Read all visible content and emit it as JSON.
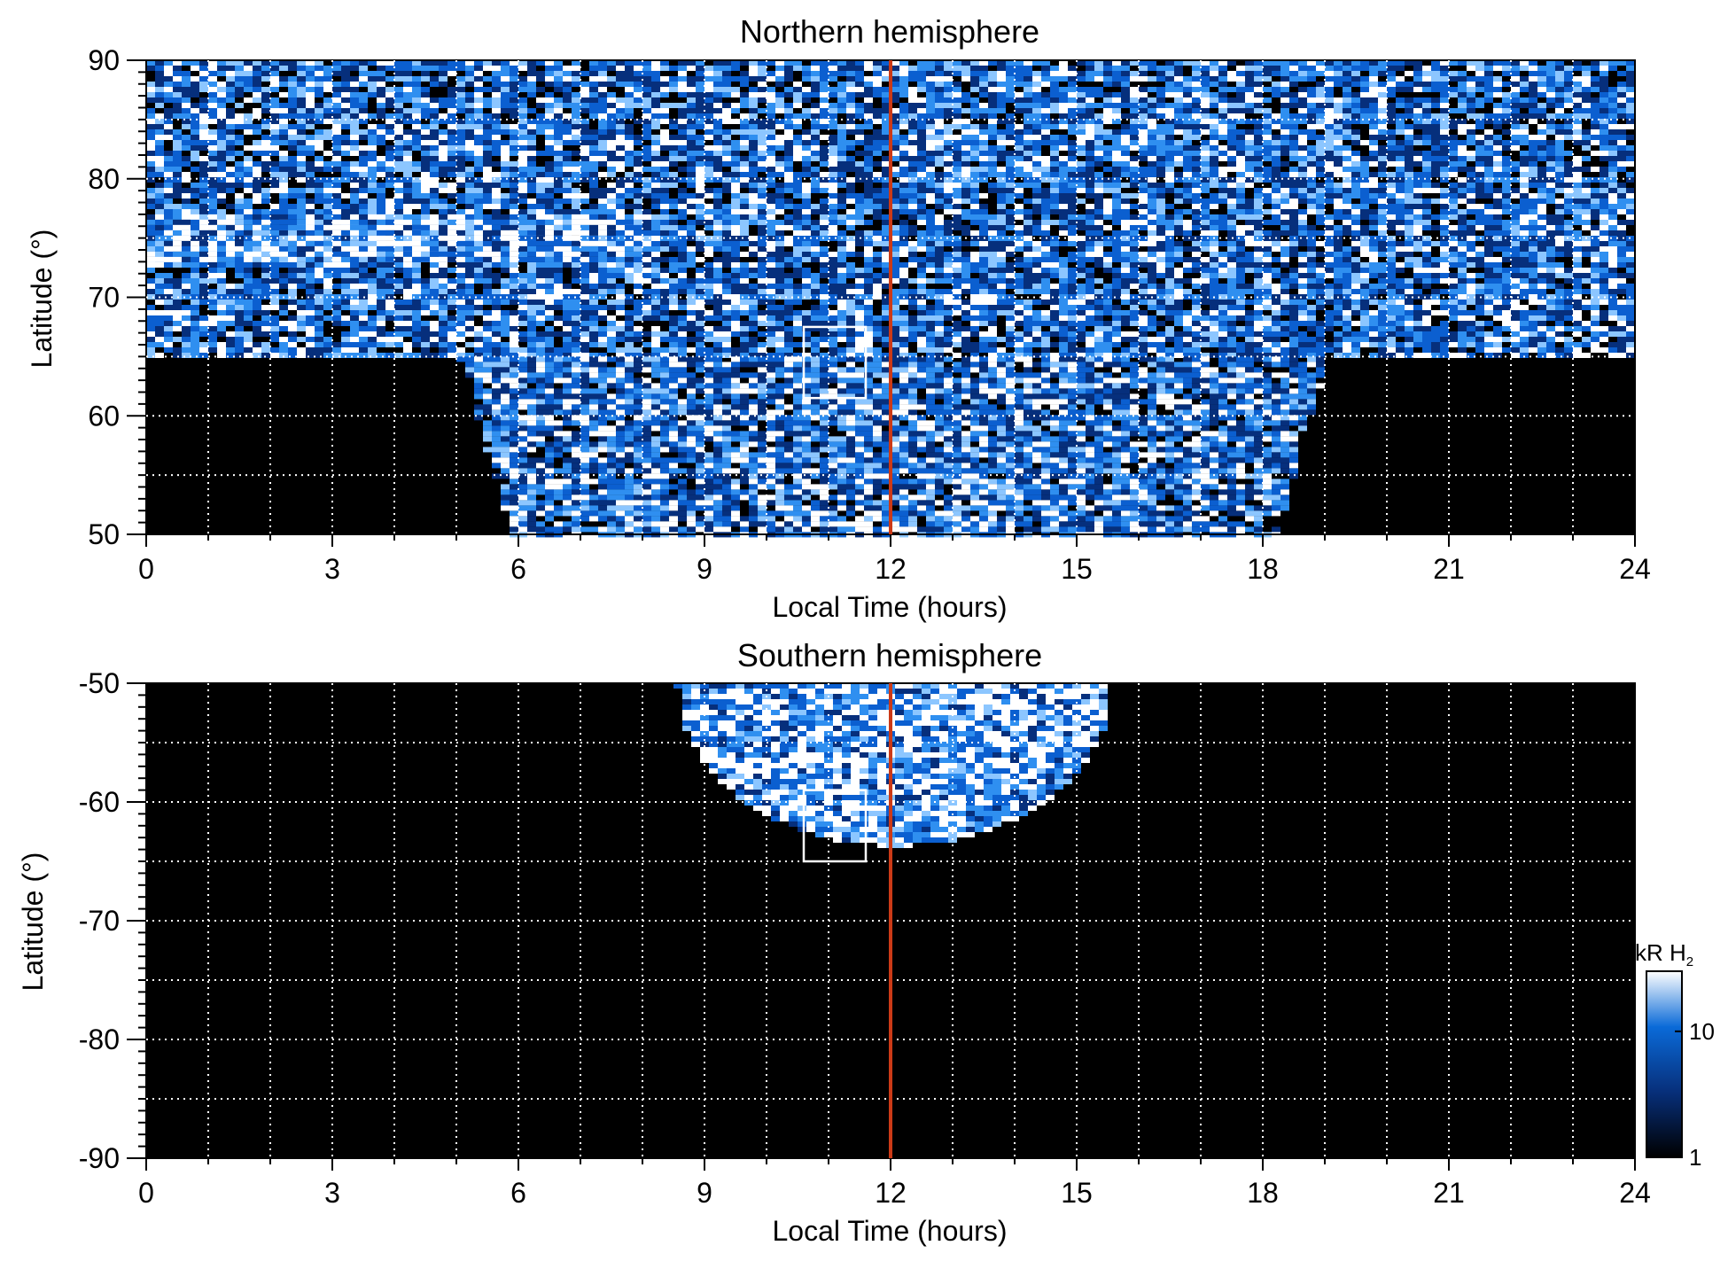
{
  "chart_data": [
    {
      "type": "heatmap",
      "title": "Northern hemisphere",
      "xlabel": "Local Time (hours)",
      "ylabel": "Latitude (°)",
      "xlim": [
        0,
        24
      ],
      "ylim": [
        50,
        90
      ],
      "xticks": [
        "0",
        "3",
        "6",
        "9",
        "12",
        "15",
        "18",
        "21",
        "24"
      ],
      "yticks": [
        "50",
        "60",
        "70",
        "80",
        "90"
      ],
      "grid": true,
      "noon_line_lt": 12,
      "selection_box": {
        "lt_range": [
          10.6,
          11.6
        ],
        "lat_range": [
          61.5,
          67.5
        ]
      },
      "coverage_note": "bright auroral oval near 74-76° from 0 to 8 LT; dense emission between ~5 and ~19 LT down to 50°; dark below 65° at night side",
      "emission_regions": [
        {
          "lt_range": [
            0,
            24
          ],
          "lat_range": [
            65,
            90
          ],
          "level_kR": 8
        },
        {
          "lt_range": [
            0,
            8
          ],
          "lat_range": [
            73,
            77
          ],
          "level_kR": 18
        },
        {
          "lt_range": [
            5,
            19
          ],
          "lat_range": [
            50,
            65
          ],
          "level_kR": 10
        }
      ]
    },
    {
      "type": "heatmap",
      "title": "Southern hemisphere",
      "xlabel": "Local Time (hours)",
      "ylabel": "Latitude (°)",
      "xlim": [
        0,
        24
      ],
      "ylim": [
        -90,
        -50
      ],
      "xticks": [
        "0",
        "3",
        "6",
        "9",
        "12",
        "15",
        "18",
        "21",
        "24"
      ],
      "yticks": [
        "-50",
        "-60",
        "-70",
        "-80",
        "-90"
      ],
      "grid": true,
      "noon_line_lt": 12,
      "selection_box": {
        "lt_range": [
          10.6,
          11.6
        ],
        "lat_range": [
          -65,
          -59
        ]
      },
      "emission_regions": [
        {
          "lt_range": [
            8.5,
            15.5
          ],
          "lat_range": [
            -63.5,
            -50
          ],
          "level_kR": 12
        }
      ]
    }
  ],
  "colorbar": {
    "label": "kR H",
    "label_subscript": "2",
    "scale": "log",
    "range": [
      1,
      30
    ],
    "ticks": [
      "1",
      "10"
    ],
    "colors": {
      "low": "#000000",
      "mid": "#0a6ad8",
      "high": "#ffffff"
    }
  },
  "colors": {
    "background": "#000000",
    "emission": "#1f7be6",
    "noon_line": "#cc3a17",
    "grid": "#ffffff",
    "box": "#ffffff"
  }
}
